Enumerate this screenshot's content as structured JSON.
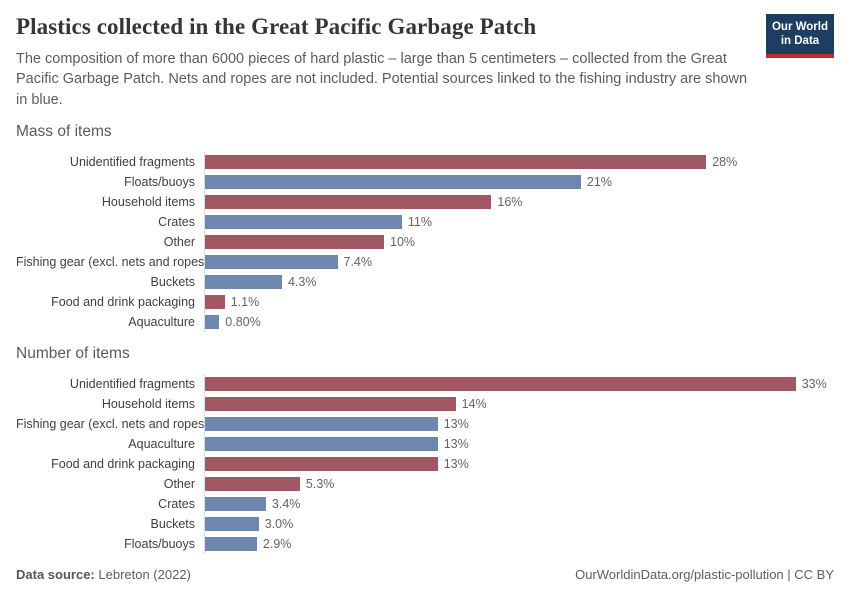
{
  "header": {
    "title": "Plastics collected in the Great Pacific Garbage Patch",
    "subtitle": "The composition of more than 6000 pieces of hard plastic – large than 5 centimeters – collected from the Great Pacific Garbage Patch. Nets and ropes are not included. Potential sources linked to the fishing industry are shown in blue.",
    "logo": {
      "line1": "Our World",
      "line2": "in Data"
    }
  },
  "colors": {
    "red": "#a25764",
    "blue": "#6d87af",
    "logo_navy": "#1d3d63",
    "logo_red": "#cf2433",
    "axis_line": "#dcdcdc"
  },
  "chart_data": [
    {
      "type": "bar",
      "orientation": "horizontal",
      "title": "Mass of items",
      "unit": "%",
      "value_axis_max": 33,
      "grid": false,
      "bars": [
        {
          "label": "Unidentified fragments",
          "value": 28,
          "display": "28%",
          "color": "red"
        },
        {
          "label": "Floats/buoys",
          "value": 21,
          "display": "21%",
          "color": "blue"
        },
        {
          "label": "Household items",
          "value": 16,
          "display": "16%",
          "color": "red"
        },
        {
          "label": "Crates",
          "value": 11,
          "display": "11%",
          "color": "blue"
        },
        {
          "label": "Other",
          "value": 10,
          "display": "10%",
          "color": "red"
        },
        {
          "label": "Fishing gear (excl. nets and ropes)",
          "value": 7.4,
          "display": "7.4%",
          "color": "blue"
        },
        {
          "label": "Buckets",
          "value": 4.3,
          "display": "4.3%",
          "color": "blue"
        },
        {
          "label": "Food and drink packaging",
          "value": 1.1,
          "display": "1.1%",
          "color": "red"
        },
        {
          "label": "Aquaculture",
          "value": 0.8,
          "display": "0.80%",
          "color": "blue"
        }
      ]
    },
    {
      "type": "bar",
      "orientation": "horizontal",
      "title": "Number of items",
      "unit": "%",
      "value_axis_max": 33,
      "grid": false,
      "bars": [
        {
          "label": "Unidentified fragments",
          "value": 33,
          "display": "33%",
          "color": "red"
        },
        {
          "label": "Household items",
          "value": 14,
          "display": "14%",
          "color": "red"
        },
        {
          "label": "Fishing gear (excl. nets and ropes)",
          "value": 13,
          "display": "13%",
          "color": "blue"
        },
        {
          "label": "Aquaculture",
          "value": 13,
          "display": "13%",
          "color": "blue"
        },
        {
          "label": "Food and drink packaging",
          "value": 13,
          "display": "13%",
          "color": "red"
        },
        {
          "label": "Other",
          "value": 5.3,
          "display": "5.3%",
          "color": "red"
        },
        {
          "label": "Crates",
          "value": 3.4,
          "display": "3.4%",
          "color": "blue"
        },
        {
          "label": "Buckets",
          "value": 3.0,
          "display": "3.0%",
          "color": "blue"
        },
        {
          "label": "Floats/buoys",
          "value": 2.9,
          "display": "2.9%",
          "color": "blue"
        }
      ]
    }
  ],
  "footer": {
    "datasource_label": "Data source:",
    "datasource_value": "Lebreton (2022)",
    "credit": "OurWorldinData.org/plastic-pollution | CC BY"
  }
}
